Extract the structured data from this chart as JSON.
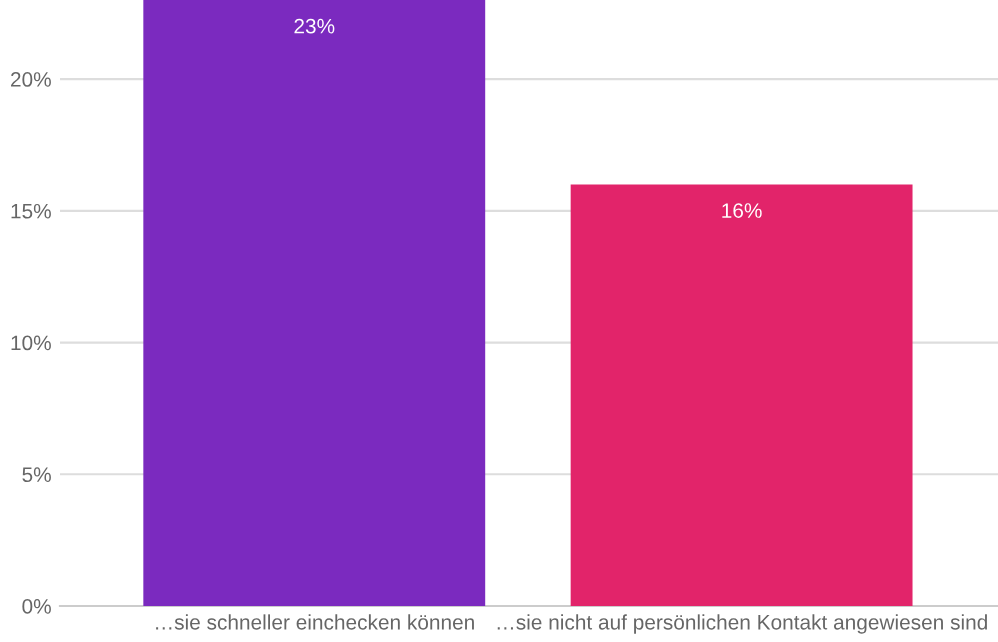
{
  "chart_data": {
    "type": "bar",
    "categories": [
      "…sie schneller einchecken können",
      "…sie nicht auf persönlichen Kontakt angewiesen sind"
    ],
    "values": [
      23,
      16
    ],
    "colors": [
      "#7b2abf",
      "#e2246a"
    ],
    "value_labels": [
      "23%",
      "16%"
    ],
    "ylim": [
      0,
      23
    ],
    "yticks": [
      {
        "value": 0,
        "label": "0%"
      },
      {
        "value": 5,
        "label": "5%"
      },
      {
        "value": 10,
        "label": "10%"
      },
      {
        "value": 15,
        "label": "15%"
      },
      {
        "value": 20,
        "label": "20%"
      }
    ],
    "grid": "y"
  }
}
